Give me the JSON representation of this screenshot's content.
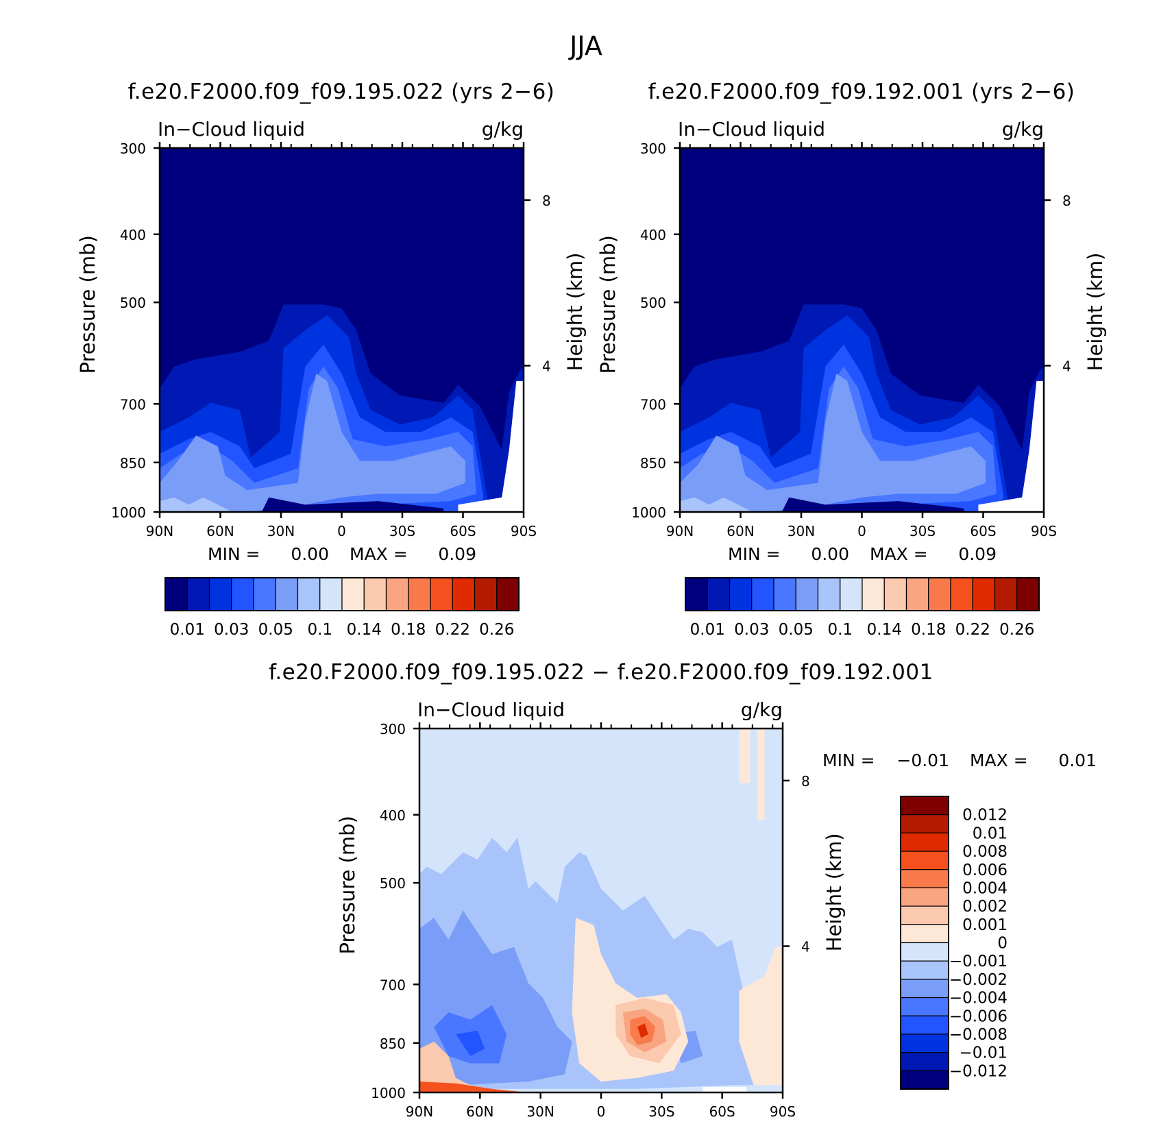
{
  "figure": {
    "title": "JJA"
  },
  "chart_data": [
    {
      "type": "heatmap",
      "title": "f.e20.F2000.f09_f09.195.022 (yrs 2−6)",
      "left_label": "In−Cloud liquid",
      "right_label": "g/kg",
      "ylabel": "Pressure (mb)",
      "ylabel_right": "Height (km)",
      "x_ticks": [
        "90N",
        "60N",
        "30N",
        "0",
        "30S",
        "60S",
        "90S"
      ],
      "y_ticks": [
        "300",
        "400",
        "500",
        "700",
        "850",
        "1000"
      ],
      "y_ticks_right": [
        "8",
        "4"
      ],
      "min_label": "MIN =",
      "min_value": "0.00",
      "max_label": "MAX =",
      "max_value": "0.09",
      "colorbar_orientation": "horizontal",
      "colorbar_labels": [
        "0.01",
        "0.03",
        "0.05",
        "0.1",
        "0.14",
        "0.18",
        "0.22",
        "0.26"
      ],
      "colors": [
        "#00007f",
        "#0019b4",
        "#0033e0",
        "#2255ff",
        "#4a77ff",
        "#7a9df7",
        "#a9c4fb",
        "#d4e5fb",
        "#fde8d8",
        "#fbc9ad",
        "#f9a581",
        "#f97b4b",
        "#f5511f",
        "#e02b00",
        "#b31b00",
        "#7f0000"
      ]
    },
    {
      "type": "heatmap",
      "title": "f.e20.F2000.f09_f09.192.001 (yrs 2−6)",
      "left_label": "In−Cloud liquid",
      "right_label": "g/kg",
      "ylabel": "Pressure (mb)",
      "ylabel_right": "Height (km)",
      "x_ticks": [
        "90N",
        "60N",
        "30N",
        "0",
        "30S",
        "60S",
        "90S"
      ],
      "y_ticks": [
        "300",
        "400",
        "500",
        "700",
        "850",
        "1000"
      ],
      "y_ticks_right": [
        "8",
        "4"
      ],
      "min_label": "MIN =",
      "min_value": "0.00",
      "max_label": "MAX =",
      "max_value": "0.09",
      "colorbar_orientation": "horizontal",
      "colorbar_labels": [
        "0.01",
        "0.03",
        "0.05",
        "0.1",
        "0.14",
        "0.18",
        "0.22",
        "0.26"
      ],
      "colors": [
        "#00007f",
        "#0019b4",
        "#0033e0",
        "#2255ff",
        "#4a77ff",
        "#7a9df7",
        "#a9c4fb",
        "#d4e5fb",
        "#fde8d8",
        "#fbc9ad",
        "#f9a581",
        "#f97b4b",
        "#f5511f",
        "#e02b00",
        "#b31b00",
        "#7f0000"
      ]
    },
    {
      "type": "heatmap",
      "title": "f.e20.F2000.f09_f09.195.022 − f.e20.F2000.f09_f09.192.001",
      "left_label": "In−Cloud liquid",
      "right_label": "g/kg",
      "ylabel": "Pressure (mb)",
      "ylabel_right": "Height (km)",
      "x_ticks": [
        "90N",
        "60N",
        "30N",
        "0",
        "30S",
        "60S",
        "90S"
      ],
      "y_ticks": [
        "300",
        "400",
        "500",
        "700",
        "850",
        "1000"
      ],
      "y_ticks_right": [
        "8",
        "4"
      ],
      "min_label": "MIN =",
      "min_value": "−0.01",
      "max_label": "MAX =",
      "max_value": "0.01",
      "colorbar_orientation": "vertical",
      "colorbar_labels": [
        "0.012",
        "0.01",
        "0.008",
        "0.006",
        "0.004",
        "0.002",
        "0.001",
        "0",
        "−0.001",
        "−0.002",
        "−0.004",
        "−0.006",
        "−0.008",
        "−0.01",
        "−0.012"
      ],
      "colors": [
        "#7f0000",
        "#b31b00",
        "#e02b00",
        "#f5511f",
        "#f97b4b",
        "#f9a581",
        "#fbc9ad",
        "#fde8d8",
        "#d4e5fb",
        "#a9c4fb",
        "#7a9df7",
        "#4a77ff",
        "#2255ff",
        "#0033e0",
        "#0019b4",
        "#00007f"
      ]
    }
  ]
}
